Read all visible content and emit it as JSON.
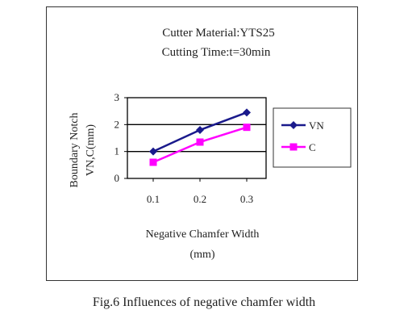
{
  "caption": "Fig.6 Influences of negative chamfer width",
  "chart_data": {
    "type": "line",
    "title": "Cutter Material:YTS25",
    "subtitle": "Cutting Time:t=30min",
    "xlabel_line1": "Negative Chamfer Width",
    "xlabel_line2": "(mm)",
    "ylabel_line1": "Boundary Notch",
    "ylabel_line2": "VN,C(mm)",
    "x": [
      0.1,
      0.2,
      0.3
    ],
    "x_tick_labels": [
      "0.1",
      "0.2",
      "0.3"
    ],
    "y_ticks": [
      0,
      1,
      2,
      3
    ],
    "y_tick_labels": [
      "0",
      "1",
      "2",
      "3"
    ],
    "ylim": [
      0,
      3
    ],
    "grid": "horizontal",
    "legend_position": "right",
    "series": [
      {
        "name": "VN",
        "values": [
          1.0,
          1.8,
          2.45
        ],
        "color": "#1a1a8c",
        "marker": "diamond"
      },
      {
        "name": "C",
        "values": [
          0.6,
          1.35,
          1.9
        ],
        "color": "#ff00ff",
        "marker": "square"
      }
    ]
  }
}
